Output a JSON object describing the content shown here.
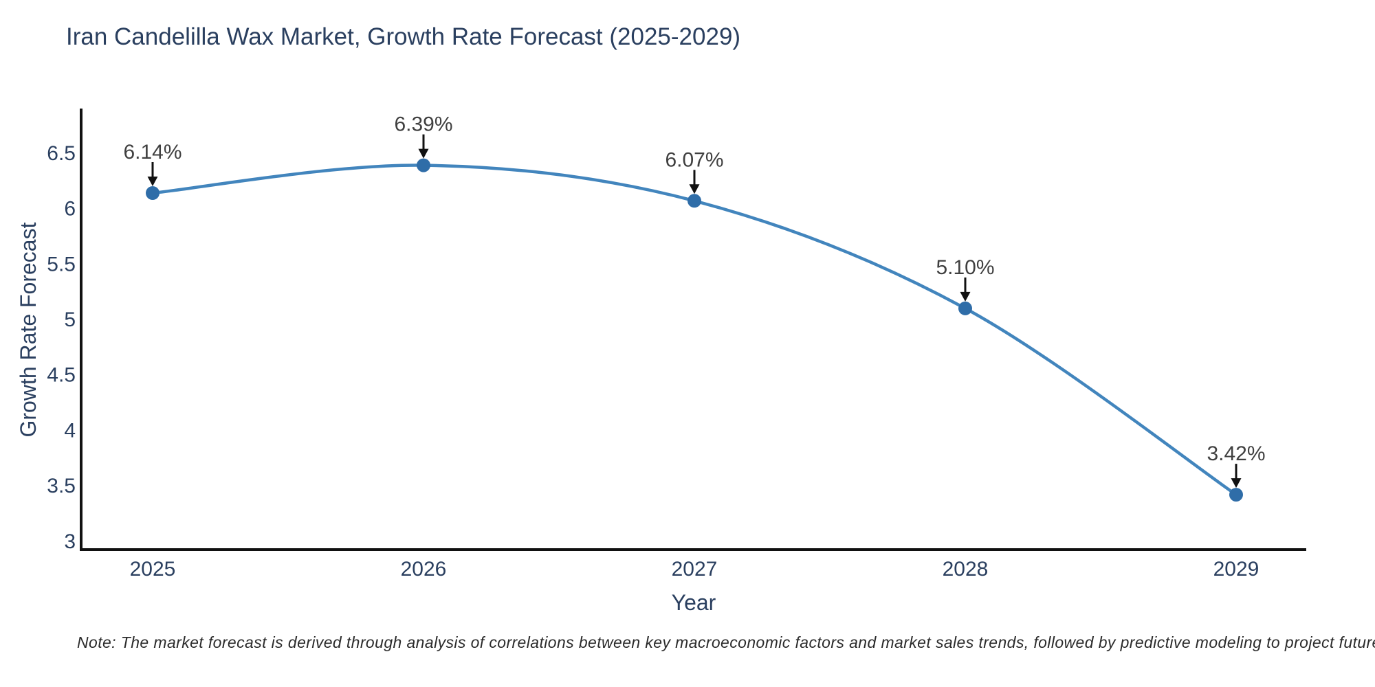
{
  "chart_data": {
    "type": "line",
    "title": "Iran Candelilla Wax Market, Growth Rate Forecast (2025-2029)",
    "xlabel": "Year",
    "ylabel": "Growth Rate Forecast",
    "categories": [
      "2025",
      "2026",
      "2027",
      "2028",
      "2029"
    ],
    "values": [
      6.14,
      6.39,
      6.07,
      5.1,
      3.42
    ],
    "point_labels": [
      "6.14%",
      "6.39%",
      "6.07%",
      "5.10%",
      "3.42%"
    ],
    "y_ticks": [
      6.5,
      6,
      5.5,
      5,
      4.5,
      4,
      3.5,
      3
    ],
    "ylim": [
      2.9,
      6.9
    ],
    "grid": false,
    "legend": "none",
    "line_shape": "spline",
    "line_color": "#4285bd",
    "marker_color": "#2f6da8",
    "axis_color": "#111111",
    "text_color": "#2a3f5f",
    "annotation_text_color": "#404040",
    "arrow_color": "#111111"
  },
  "note": "Note: The market forecast is derived through analysis of correlations between key macroeconomic factors and market sales trends, followed by predictive modeling to project future sales"
}
